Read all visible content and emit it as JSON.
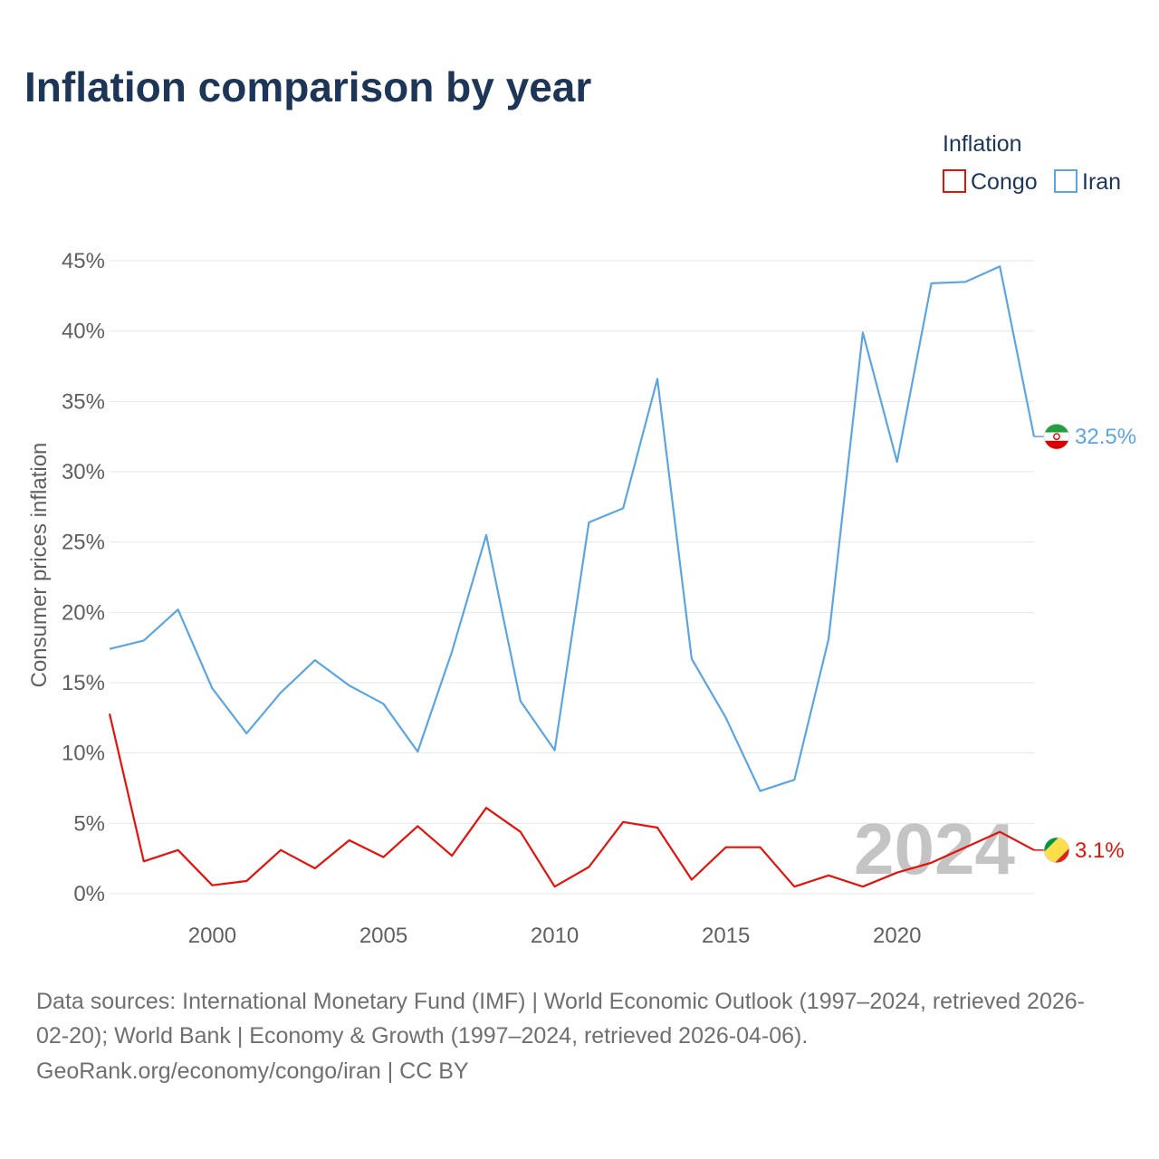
{
  "chart_data": {
    "type": "line",
    "title": "Inflation comparison by year",
    "xlabel": "",
    "ylabel": "Consumer prices inflation",
    "legend_title": "Inflation",
    "legend_position": "top-right",
    "grid": true,
    "xlim": [
      1997,
      2024
    ],
    "ylim": [
      0,
      45
    ],
    "x_ticks": [
      2000,
      2005,
      2010,
      2015,
      2020
    ],
    "y_ticks": [
      0,
      5,
      10,
      15,
      20,
      25,
      30,
      35,
      40,
      45
    ],
    "y_tick_labels": [
      "0%",
      "5%",
      "10%",
      "15%",
      "20%",
      "25%",
      "30%",
      "35%",
      "40%",
      "45%"
    ],
    "x": [
      1997,
      1998,
      1999,
      2000,
      2001,
      2002,
      2003,
      2004,
      2005,
      2006,
      2007,
      2008,
      2009,
      2010,
      2011,
      2012,
      2013,
      2014,
      2015,
      2016,
      2017,
      2018,
      2019,
      2020,
      2021,
      2022,
      2023,
      2024
    ],
    "series": [
      {
        "name": "Congo",
        "color": "#e3120b",
        "end_label": "3.1%",
        "flag_icon": "congo-flag-icon",
        "values": [
          12.8,
          2.3,
          3.1,
          0.6,
          0.9,
          3.1,
          1.8,
          3.8,
          2.6,
          4.8,
          2.7,
          6.1,
          4.4,
          0.5,
          1.9,
          5.1,
          4.7,
          1.0,
          3.3,
          3.3,
          0.5,
          1.3,
          0.5,
          1.5,
          2.2,
          3.3,
          4.4,
          3.1
        ]
      },
      {
        "name": "Iran",
        "color": "#5ca5e3",
        "end_label": "32.5%",
        "flag_icon": "iran-flag-icon",
        "values": [
          17.4,
          18.0,
          20.2,
          14.6,
          11.4,
          14.3,
          16.6,
          14.8,
          13.5,
          10.1,
          17.2,
          25.5,
          13.7,
          10.2,
          26.4,
          27.4,
          36.6,
          16.7,
          12.5,
          7.3,
          8.1,
          18.1,
          39.9,
          30.7,
          43.4,
          43.5,
          44.6,
          32.5
        ]
      }
    ],
    "watermark_year": "2024"
  },
  "footer": {
    "line1": "Data sources: International Monetary Fund (IMF) | World Economic Outlook (1997–2024, retrieved 2026-",
    "line2": "02-20); World Bank | Economy & Growth (1997–2024, retrieved 2026-04-06).",
    "line3": "GeoRank.org/economy/congo/iran | CC BY"
  }
}
